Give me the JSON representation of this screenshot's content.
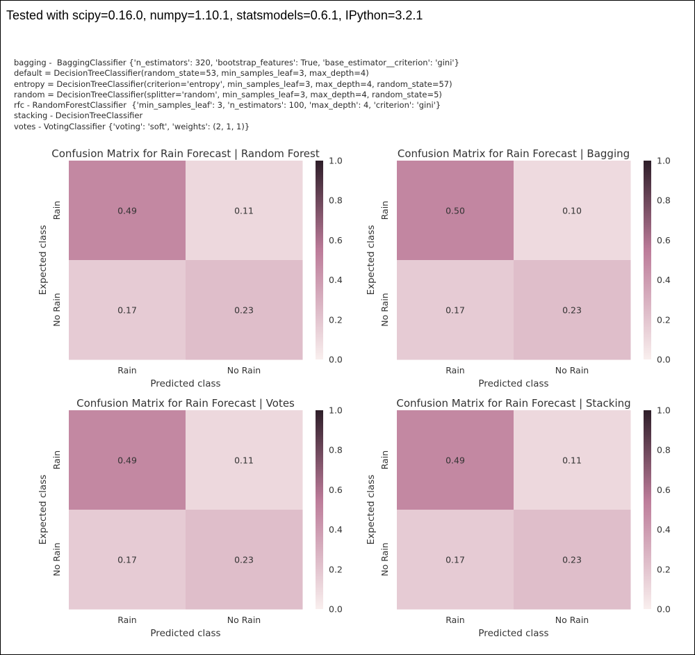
{
  "header": {
    "versions_text": "Tested with scipy=0.16.0, numpy=1.10.1, statsmodels=0.6.1, IPython=3.2.1"
  },
  "notes": [
    "bagging -  BaggingClassifier {'n_estimators': 320, 'bootstrap_features': True, 'base_estimator__criterion': 'gini'}",
    "default = DecisionTreeClassifier(random_state=53, min_samples_leaf=3, max_depth=4)",
    "entropy = DecisionTreeClassifier(criterion='entropy', min_samples_leaf=3, max_depth=4, random_state=57)",
    "random = DecisionTreeClassifier(splitter='random', min_samples_leaf=3, max_depth=4, random_state=5)",
    "rfc - RandomForestClassifier  {'min_samples_leaf': 3, 'n_estimators': 100, 'max_depth': 4, 'criterion': 'gini'}",
    "stacking - DecisionTreeClassifier",
    "votes - VotingClassifier {'voting': 'soft', 'weights': (2, 1, 1)}"
  ],
  "colors": {
    "colormap_low": "#f9efee",
    "colormap_mid": "#bc7b99",
    "colormap_high": "#2e1e29",
    "text": "#333333"
  },
  "chart_data": [
    {
      "type": "heatmap",
      "title": "Confusion Matrix for Rain Forecast | Random Forest",
      "xlabel": "Predicted class",
      "ylabel": "Expected class",
      "x_categories": [
        "Rain",
        "No Rain"
      ],
      "y_categories": [
        "Rain",
        "No Rain"
      ],
      "values": [
        [
          0.49,
          0.11
        ],
        [
          0.17,
          0.23
        ]
      ],
      "colorbar": {
        "range": [
          0.0,
          1.0
        ],
        "ticks": [
          "0.0",
          "0.2",
          "0.4",
          "0.6",
          "0.8",
          "1.0"
        ]
      }
    },
    {
      "type": "heatmap",
      "title": "Confusion Matrix for Rain Forecast | Bagging",
      "xlabel": "Predicted class",
      "ylabel": "Expected class",
      "x_categories": [
        "Rain",
        "No Rain"
      ],
      "y_categories": [
        "Rain",
        "No Rain"
      ],
      "values": [
        [
          0.5,
          0.1
        ],
        [
          0.17,
          0.23
        ]
      ],
      "colorbar": {
        "range": [
          0.0,
          1.0
        ],
        "ticks": [
          "0.0",
          "0.2",
          "0.4",
          "0.6",
          "0.8",
          "1.0"
        ]
      }
    },
    {
      "type": "heatmap",
      "title": "Confusion Matrix for Rain Forecast | Votes",
      "xlabel": "Predicted class",
      "ylabel": "Expected class",
      "x_categories": [
        "Rain",
        "No Rain"
      ],
      "y_categories": [
        "Rain",
        "No Rain"
      ],
      "values": [
        [
          0.49,
          0.11
        ],
        [
          0.17,
          0.23
        ]
      ],
      "colorbar": {
        "range": [
          0.0,
          1.0
        ],
        "ticks": [
          "0.0",
          "0.2",
          "0.4",
          "0.6",
          "0.8",
          "1.0"
        ]
      }
    },
    {
      "type": "heatmap",
      "title": "Confusion Matrix for Rain Forecast | Stacking",
      "xlabel": "Predicted class",
      "ylabel": "Expected class",
      "x_categories": [
        "Rain",
        "No Rain"
      ],
      "y_categories": [
        "Rain",
        "No Rain"
      ],
      "values": [
        [
          0.49,
          0.11
        ],
        [
          0.17,
          0.23
        ]
      ],
      "colorbar": {
        "range": [
          0.0,
          1.0
        ],
        "ticks": [
          "0.0",
          "0.2",
          "0.4",
          "0.6",
          "0.8",
          "1.0"
        ]
      }
    }
  ]
}
